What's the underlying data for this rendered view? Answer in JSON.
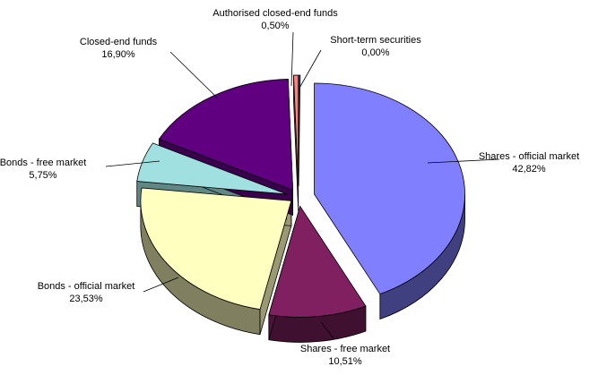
{
  "chart_data": {
    "type": "pie",
    "variant": "3d-exploded",
    "title": "",
    "slices": [
      {
        "label": "Shares - official market",
        "value": 42.82,
        "display": "42,82%",
        "color": "#8080FF"
      },
      {
        "label": "Shares - free market",
        "value": 10.51,
        "display": "10,51%",
        "color": "#802060"
      },
      {
        "label": "Bonds - official market",
        "value": 23.53,
        "display": "23,53%",
        "color": "#FFFFC0"
      },
      {
        "label": "Bonds - free market",
        "value": 5.75,
        "display": "5,75%",
        "color": "#A0E0E0"
      },
      {
        "label": "Closed-end funds",
        "value": 16.9,
        "display": "16,90%",
        "color": "#600080"
      },
      {
        "label": "Authorised closed-end funds",
        "value": 0.5,
        "display": "0,50%",
        "color": "#FF8080"
      },
      {
        "label": "Short-term securities",
        "value": 0.0,
        "display": "0,00%",
        "color": "#0066CC"
      }
    ]
  }
}
